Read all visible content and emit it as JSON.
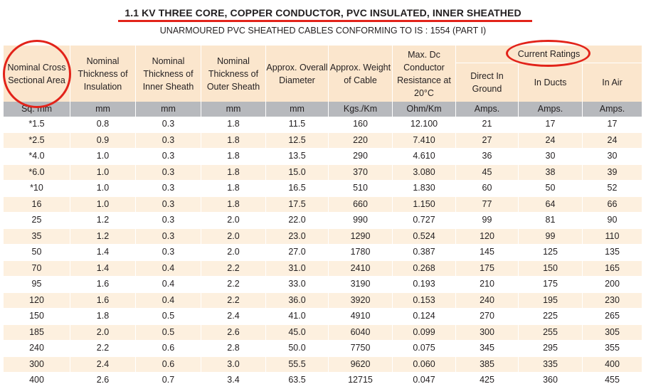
{
  "title": "1.1 KV THREE CORE, COPPER CONDUCTOR, PVC INSULATED, INNER SHEATHED",
  "subtitle": "UNARMOURED PVC SHEATHED CABLES CONFORMING TO IS : 1554 (PART I)",
  "headers": {
    "area": "Nominal Cross Sectional Area",
    "insulation": "Nominal Thickness of Insulation",
    "inner_sheath": "Nominal Thickness of Inner Sheath",
    "outer_sheath": "Nominal Thickness of Outer Sheath",
    "diameter": "Approx. Overall Diameter",
    "weight": "Approx. Weight of Cable",
    "resistance": "Max. Dc Conductor Resistance at 20°C",
    "current_ratings": "Current Ratings",
    "ground": "Direct In Ground",
    "ducts": "In Ducts",
    "air": "In Air"
  },
  "units": [
    "Sq. mm",
    "mm",
    "mm",
    "mm",
    "mm",
    "Kgs./Km",
    "Ohm/Km",
    "Amps.",
    "Amps.",
    "Amps."
  ],
  "rows": [
    [
      "*1.5",
      "0.8",
      "0.3",
      "1.8",
      "11.5",
      "160",
      "12.100",
      "21",
      "17",
      "17"
    ],
    [
      "*2.5",
      "0.9",
      "0.3",
      "1.8",
      "12.5",
      "220",
      "7.410",
      "27",
      "24",
      "24"
    ],
    [
      "*4.0",
      "1.0",
      "0.3",
      "1.8",
      "13.5",
      "290",
      "4.610",
      "36",
      "30",
      "30"
    ],
    [
      "*6.0",
      "1.0",
      "0.3",
      "1.8",
      "15.0",
      "370",
      "3.080",
      "45",
      "38",
      "39"
    ],
    [
      "*10",
      "1.0",
      "0.3",
      "1.8",
      "16.5",
      "510",
      "1.830",
      "60",
      "50",
      "52"
    ],
    [
      "16",
      "1.0",
      "0.3",
      "1.8",
      "17.5",
      "660",
      "1.150",
      "77",
      "64",
      "66"
    ],
    [
      "25",
      "1.2",
      "0.3",
      "2.0",
      "22.0",
      "990",
      "0.727",
      "99",
      "81",
      "90"
    ],
    [
      "35",
      "1.2",
      "0.3",
      "2.0",
      "23.0",
      "1290",
      "0.524",
      "120",
      "99",
      "110"
    ],
    [
      "50",
      "1.4",
      "0.3",
      "2.0",
      "27.0",
      "1780",
      "0.387",
      "145",
      "125",
      "135"
    ],
    [
      "70",
      "1.4",
      "0.4",
      "2.2",
      "31.0",
      "2410",
      "0.268",
      "175",
      "150",
      "165"
    ],
    [
      "95",
      "1.6",
      "0.4",
      "2.2",
      "33.0",
      "3190",
      "0.193",
      "210",
      "175",
      "200"
    ],
    [
      "120",
      "1.6",
      "0.4",
      "2.2",
      "36.0",
      "3920",
      "0.153",
      "240",
      "195",
      "230"
    ],
    [
      "150",
      "1.8",
      "0.5",
      "2.4",
      "41.0",
      "4910",
      "0.124",
      "270",
      "225",
      "265"
    ],
    [
      "185",
      "2.0",
      "0.5",
      "2.6",
      "45.0",
      "6040",
      "0.099",
      "300",
      "255",
      "305"
    ],
    [
      "240",
      "2.2",
      "0.6",
      "2.8",
      "50.0",
      "7750",
      "0.075",
      "345",
      "295",
      "355"
    ],
    [
      "300",
      "2.4",
      "0.6",
      "3.0",
      "55.5",
      "9620",
      "0.060",
      "385",
      "335",
      "400"
    ],
    [
      "400",
      "2.6",
      "0.7",
      "3.4",
      "63.5",
      "12715",
      "0.047",
      "425",
      "360",
      "455"
    ]
  ]
}
